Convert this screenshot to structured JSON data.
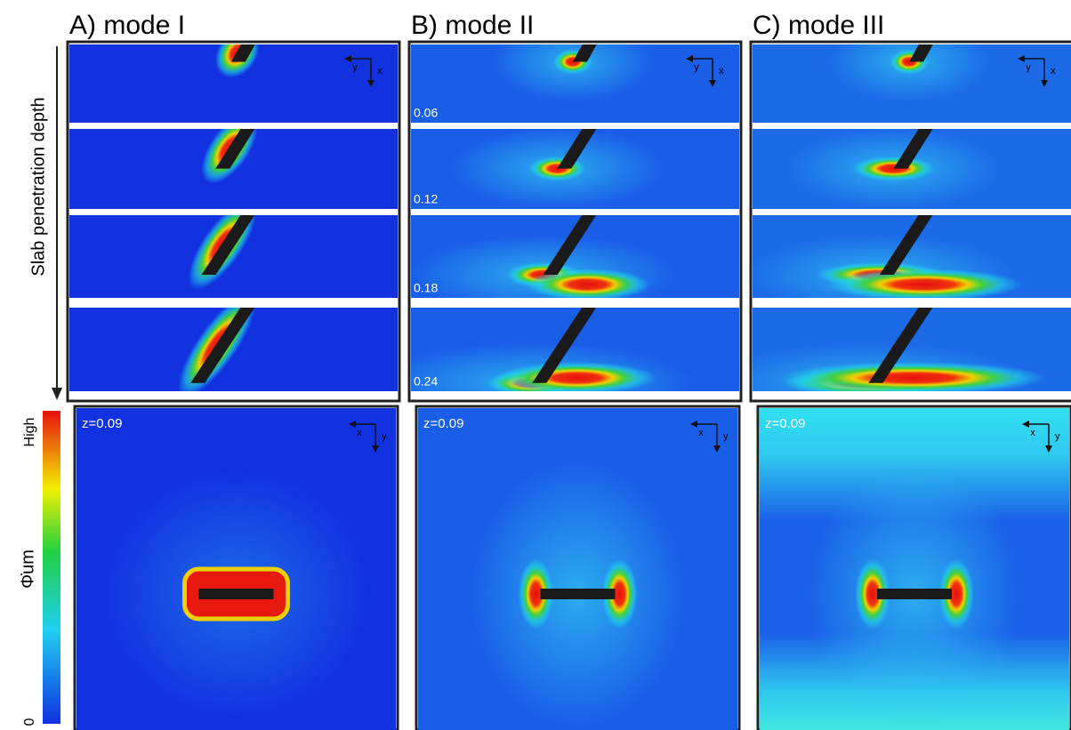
{
  "header": {
    "titles": [
      "A) mode I",
      "B) mode II",
      "C) mode III"
    ]
  },
  "side_label": "Slab penetration depth",
  "depth_labels": [
    "0.06",
    "0.12",
    "0.18",
    "0.24"
  ],
  "plan_view_label": "z=0.09",
  "axes": {
    "top": [
      "y",
      "x"
    ],
    "bottom": [
      "x",
      "y"
    ]
  },
  "colorbar": {
    "title": "Φ̇um",
    "high": "High",
    "low": "0"
  }
}
